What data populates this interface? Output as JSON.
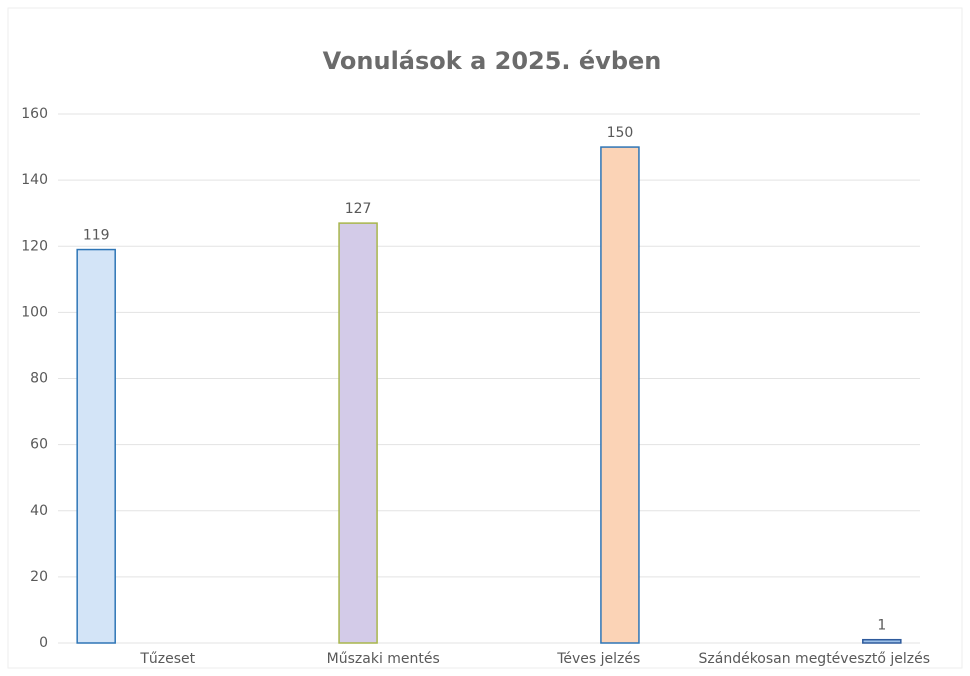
{
  "chart_data": {
    "type": "bar",
    "title": "Vonulások a 2025. évben",
    "categories": [
      "Tűzeset",
      "Műszaki mentés",
      "Téves jelzés",
      "Szándékosan megtévesztő jelzés"
    ],
    "values": [
      119,
      127,
      150,
      1
    ],
    "colors": [
      "#d3e4f7",
      "#d3cbe8",
      "#fbd3b6",
      "#9cc0e8"
    ],
    "edgecolors": [
      "#2e75b6",
      "#a8b64c",
      "#2e75b6",
      "#2e5a9c"
    ],
    "ylim": [
      0,
      160
    ],
    "yticks": [
      0,
      20,
      40,
      60,
      80,
      100,
      120,
      140,
      160
    ],
    "grid": true
  }
}
